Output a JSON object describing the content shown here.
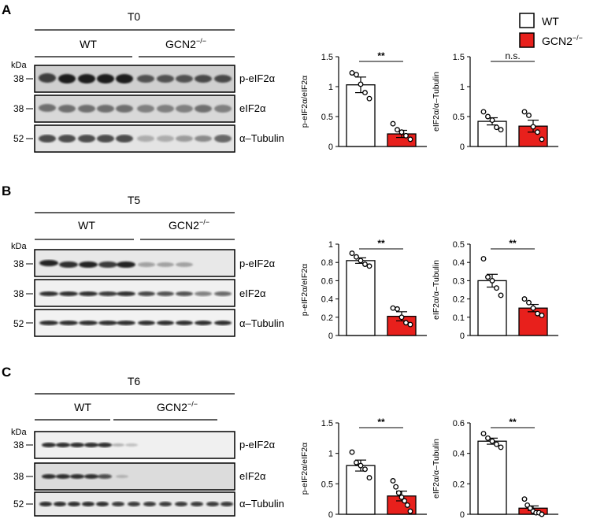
{
  "legend": {
    "wt": "WT",
    "ko": "GCN2",
    "ko_sup": "−/−"
  },
  "colors": {
    "wt_fill": "#ffffff",
    "ko_fill": "#e8201c",
    "stroke": "#000000"
  },
  "panels": [
    {
      "letter": "A",
      "timepoint": "T0",
      "groups": {
        "wt": "WT",
        "ko": "GCN2",
        "ko_sup": "−/−"
      },
      "kda": "kDa",
      "blots": [
        {
          "label": "p-eIF2α",
          "mw": "38"
        },
        {
          "label": "eIF2α",
          "mw": "38"
        },
        {
          "label": "α–Tubulin",
          "mw": "52"
        }
      ]
    },
    {
      "letter": "B",
      "timepoint": "T5",
      "groups": {
        "wt": "WT",
        "ko": "GCN2",
        "ko_sup": "−/−"
      },
      "kda": "kDa",
      "blots": [
        {
          "label": "p-eIF2α",
          "mw": "38"
        },
        {
          "label": "eIF2α",
          "mw": "38"
        },
        {
          "label": "α–Tubulin",
          "mw": "52"
        }
      ]
    },
    {
      "letter": "C",
      "timepoint": "T6",
      "groups": {
        "wt": "WT",
        "ko": "GCN2",
        "ko_sup": "−/−"
      },
      "kda": "kDa",
      "blots": [
        {
          "label": "p-eIF2α",
          "mw": "38"
        },
        {
          "label": "eIF2α",
          "mw": "38"
        },
        {
          "label": "α–Tubulin",
          "mw": "52"
        }
      ]
    }
  ],
  "chart_data": [
    {
      "type": "bar",
      "panel": "A",
      "ylabel": "p-eIF2α/eIF2α",
      "ylim": [
        0,
        1.5
      ],
      "yticks": [
        "0",
        "0.5",
        "1",
        "1.5"
      ],
      "categories": [
        "WT",
        "GCN2−/−"
      ],
      "values": [
        1.03,
        0.21
      ],
      "sem": [
        0.13,
        0.06
      ],
      "significance": "**",
      "points": [
        [
          1.23,
          1.2,
          1.04,
          0.9,
          0.8
        ],
        [
          0.38,
          0.28,
          0.24,
          0.18,
          0.12
        ]
      ]
    },
    {
      "type": "bar",
      "panel": "A",
      "ylabel": "eIF2α/α–Tubulin",
      "ylim": [
        0,
        1.5
      ],
      "yticks": [
        "0",
        "0.5",
        "1",
        "1.5"
      ],
      "categories": [
        "WT",
        "GCN2−/−"
      ],
      "values": [
        0.42,
        0.34
      ],
      "sem": [
        0.06,
        0.1
      ],
      "significance": "n.s.",
      "points": [
        [
          0.58,
          0.5,
          0.44,
          0.32,
          0.28
        ],
        [
          0.58,
          0.52,
          0.33,
          0.24,
          0.12
        ]
      ]
    },
    {
      "type": "bar",
      "panel": "B",
      "ylabel": "p-eIF2α/eIF2α",
      "ylim": [
        0,
        1
      ],
      "yticks": [
        "0",
        "0.2",
        "0.4",
        "0.6",
        "0.8",
        "1"
      ],
      "categories": [
        "WT",
        "GCN2−/−"
      ],
      "values": [
        0.82,
        0.21
      ],
      "sem": [
        0.03,
        0.05
      ],
      "significance": "**",
      "points": [
        [
          0.9,
          0.86,
          0.82,
          0.78,
          0.76
        ],
        [
          0.3,
          0.29,
          0.2,
          0.14,
          0.12
        ]
      ]
    },
    {
      "type": "bar",
      "panel": "B",
      "ylabel": "eIF2α/α–Tubulin",
      "ylim": [
        0,
        0.5
      ],
      "yticks": [
        "0",
        "0.1",
        "0.2",
        "0.3",
        "0.4",
        "0.5"
      ],
      "categories": [
        "WT",
        "GCN2−/−"
      ],
      "values": [
        0.3,
        0.15
      ],
      "sem": [
        0.035,
        0.02
      ],
      "significance": "**",
      "points": [
        [
          0.42,
          0.32,
          0.3,
          0.26,
          0.22
        ],
        [
          0.2,
          0.18,
          0.15,
          0.12,
          0.11
        ]
      ]
    },
    {
      "type": "bar",
      "panel": "C",
      "ylabel": "p-eIF2α/eIF2α",
      "ylim": [
        0,
        1.5
      ],
      "yticks": [
        "0",
        "0.5",
        "1",
        "1.5"
      ],
      "categories": [
        "WT",
        "GCN2−/−"
      ],
      "values": [
        0.8,
        0.3
      ],
      "sem": [
        0.09,
        0.08
      ],
      "significance": "**",
      "points": [
        [
          1.02,
          0.85,
          0.8,
          0.74,
          0.6
        ],
        [
          0.55,
          0.45,
          0.35,
          0.28,
          0.22,
          0.15,
          0.05
        ]
      ]
    },
    {
      "type": "bar",
      "panel": "C",
      "ylabel": "eIF2α/α–Tubulin",
      "ylim": [
        0,
        0.6
      ],
      "yticks": [
        "0",
        "0.2",
        "0.4",
        "0.6"
      ],
      "categories": [
        "WT",
        "GCN2−/−"
      ],
      "values": [
        0.48,
        0.04
      ],
      "sem": [
        0.02,
        0.015
      ],
      "significance": "**",
      "points": [
        [
          0.53,
          0.5,
          0.48,
          0.46,
          0.44
        ],
        [
          0.1,
          0.06,
          0.04,
          0.02,
          0.01,
          0.01,
          0.0
        ]
      ]
    }
  ]
}
